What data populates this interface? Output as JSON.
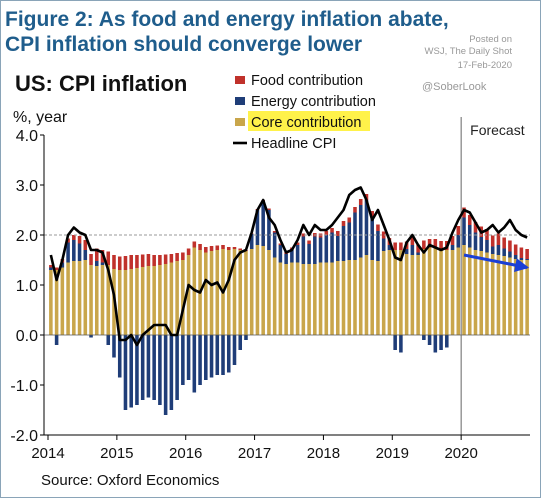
{
  "header": {
    "title_line1": "Figure 2: As food and energy inflation abate,",
    "title_line2": "CPI inflation should converge lower"
  },
  "credits": {
    "posted_on": "Posted on",
    "outlet": "WSJ, The Daily Shot",
    "date": "17-Feb-2020",
    "handle": "@SoberLook"
  },
  "chart_data": {
    "type": "bar",
    "title": "US: CPI inflation",
    "ylabel": "%, year",
    "source": "Source: Oxford Economics",
    "ylim": [
      -2.0,
      4.0
    ],
    "yticks": [
      "4.0",
      "3.0",
      "2.0",
      "1.0",
      "0.0",
      "-1.0",
      "-2.0"
    ],
    "xticks": [
      "2014",
      "2015",
      "2016",
      "2017",
      "2018",
      "2019",
      "2020"
    ],
    "forecast_label": "Forecast",
    "forecast_start": "2020-01",
    "reference_line": 2.0,
    "months": [
      "2014-01",
      "2014-02",
      "2014-03",
      "2014-04",
      "2014-05",
      "2014-06",
      "2014-07",
      "2014-08",
      "2014-09",
      "2014-10",
      "2014-11",
      "2014-12",
      "2015-01",
      "2015-02",
      "2015-03",
      "2015-04",
      "2015-05",
      "2015-06",
      "2015-07",
      "2015-08",
      "2015-09",
      "2015-10",
      "2015-11",
      "2015-12",
      "2016-01",
      "2016-02",
      "2016-03",
      "2016-04",
      "2016-05",
      "2016-06",
      "2016-07",
      "2016-08",
      "2016-09",
      "2016-10",
      "2016-11",
      "2016-12",
      "2017-01",
      "2017-02",
      "2017-03",
      "2017-04",
      "2017-05",
      "2017-06",
      "2017-07",
      "2017-08",
      "2017-09",
      "2017-10",
      "2017-11",
      "2017-12",
      "2018-01",
      "2018-02",
      "2018-03",
      "2018-04",
      "2018-05",
      "2018-06",
      "2018-07",
      "2018-08",
      "2018-09",
      "2018-10",
      "2018-11",
      "2018-12",
      "2019-01",
      "2019-02",
      "2019-03",
      "2019-04",
      "2019-05",
      "2019-06",
      "2019-07",
      "2019-08",
      "2019-09",
      "2019-10",
      "2019-11",
      "2019-12",
      "2020-01",
      "2020-02",
      "2020-03",
      "2020-04",
      "2020-05",
      "2020-06",
      "2020-07",
      "2020-08",
      "2020-09",
      "2020-10",
      "2020-11",
      "2020-12"
    ],
    "series": [
      {
        "name": "Food contribution",
        "color": "#c0312b",
        "values": [
          0.05,
          0.05,
          0.07,
          0.08,
          0.1,
          0.15,
          0.2,
          0.22,
          0.25,
          0.25,
          0.27,
          0.28,
          0.27,
          0.28,
          0.28,
          0.26,
          0.25,
          0.24,
          0.22,
          0.2,
          0.19,
          0.17,
          0.16,
          0.15,
          0.13,
          0.12,
          0.12,
          0.11,
          0.1,
          0.09,
          0.08,
          0.06,
          0.04,
          0.03,
          0.02,
          0.01,
          0.02,
          0.02,
          0.03,
          0.03,
          0.03,
          0.04,
          0.05,
          0.05,
          0.06,
          0.07,
          0.07,
          0.08,
          0.08,
          0.09,
          0.1,
          0.1,
          0.1,
          0.11,
          0.12,
          0.12,
          0.13,
          0.13,
          0.14,
          0.14,
          0.15,
          0.15,
          0.15,
          0.16,
          0.16,
          0.17,
          0.17,
          0.17,
          0.18,
          0.18,
          0.18,
          0.18,
          0.2,
          0.2,
          0.21,
          0.21,
          0.22,
          0.22,
          0.23,
          0.22,
          0.22,
          0.21,
          0.21,
          0.2
        ]
      },
      {
        "name": "Energy contribution",
        "color": "#1f3d78",
        "values": [
          0.05,
          -0.2,
          0.1,
          0.4,
          0.42,
          0.35,
          0.2,
          -0.05,
          0.1,
          0.05,
          -0.2,
          -0.45,
          -0.85,
          -1.5,
          -1.45,
          -1.4,
          -1.3,
          -1.25,
          -1.3,
          -1.4,
          -1.6,
          -1.5,
          -1.3,
          -1.0,
          -0.9,
          -1.15,
          -1.0,
          -0.9,
          -0.85,
          -0.8,
          -0.8,
          -0.75,
          -0.6,
          -0.3,
          -0.1,
          0.3,
          0.7,
          0.9,
          0.8,
          0.5,
          0.35,
          0.2,
          0.25,
          0.35,
          0.55,
          0.4,
          0.55,
          0.5,
          0.55,
          0.6,
          0.5,
          0.7,
          0.75,
          0.95,
          1.05,
          1.1,
          0.85,
          0.6,
          0.25,
          0.1,
          -0.3,
          -0.35,
          0.1,
          0.2,
          0.05,
          -0.1,
          -0.2,
          -0.35,
          -0.3,
          -0.25,
          0.1,
          0.25,
          0.55,
          0.45,
          0.35,
          0.28,
          0.25,
          0.15,
          0.2,
          0.15,
          0.12,
          0.08,
          0.04,
          0.02
        ]
      },
      {
        "name": "Core contribution",
        "color": "#c9a64b",
        "values": [
          1.3,
          1.3,
          1.35,
          1.45,
          1.48,
          1.48,
          1.5,
          1.4,
          1.38,
          1.4,
          1.4,
          1.32,
          1.3,
          1.3,
          1.32,
          1.34,
          1.36,
          1.38,
          1.38,
          1.4,
          1.42,
          1.45,
          1.48,
          1.5,
          1.6,
          1.75,
          1.7,
          1.65,
          1.68,
          1.7,
          1.72,
          1.7,
          1.72,
          1.7,
          1.68,
          1.72,
          1.8,
          1.78,
          1.7,
          1.55,
          1.45,
          1.42,
          1.45,
          1.45,
          1.42,
          1.42,
          1.42,
          1.45,
          1.45,
          1.45,
          1.48,
          1.48,
          1.5,
          1.5,
          1.55,
          1.6,
          1.5,
          1.48,
          1.68,
          1.7,
          1.7,
          1.7,
          1.62,
          1.6,
          1.6,
          1.72,
          1.75,
          1.75,
          1.7,
          1.7,
          1.7,
          1.75,
          1.8,
          1.75,
          1.7,
          1.68,
          1.65,
          1.62,
          1.6,
          1.58,
          1.55,
          1.52,
          1.5,
          1.5
        ]
      },
      {
        "name": "Headline CPI",
        "color": "#000000",
        "values": [
          1.6,
          1.1,
          1.5,
          2.0,
          2.15,
          2.05,
          2.0,
          1.7,
          1.7,
          1.65,
          1.3,
          0.8,
          -0.1,
          -0.1,
          0.0,
          -0.2,
          0.0,
          0.1,
          0.2,
          0.2,
          0.2,
          0.0,
          0.0,
          0.5,
          1.0,
          0.9,
          0.85,
          1.1,
          1.0,
          1.05,
          0.85,
          1.1,
          1.5,
          1.65,
          1.7,
          2.05,
          2.5,
          2.7,
          2.35,
          2.2,
          1.9,
          1.65,
          1.7,
          1.9,
          2.2,
          2.0,
          2.2,
          2.1,
          2.1,
          2.2,
          2.35,
          2.5,
          2.8,
          2.9,
          2.95,
          2.7,
          2.3,
          2.5,
          2.2,
          1.9,
          1.55,
          1.5,
          1.85,
          2.0,
          1.8,
          1.65,
          1.8,
          1.75,
          1.7,
          1.75,
          2.05,
          2.3,
          2.5,
          2.45,
          2.25,
          2.05,
          2.1,
          2.2,
          2.05,
          2.15,
          2.3,
          2.1,
          2.0,
          1.95
        ]
      }
    ],
    "annotations": [
      {
        "type": "arrow",
        "color": "#1a3fd6",
        "from": {
          "x": "2020-01",
          "y": 1.6
        },
        "to": {
          "x": "2020-12",
          "y": 1.35
        }
      }
    ]
  }
}
